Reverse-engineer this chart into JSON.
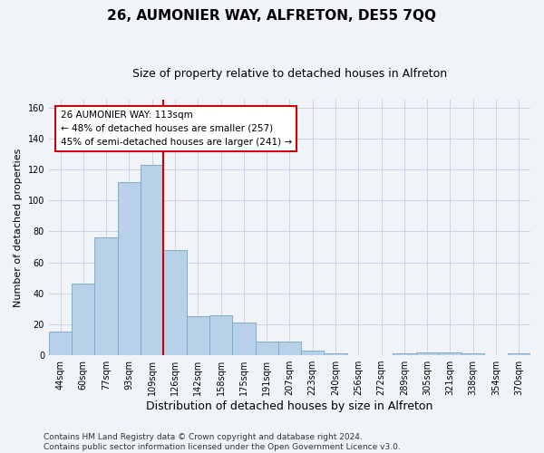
{
  "title": "26, AUMONIER WAY, ALFRETON, DE55 7QQ",
  "subtitle": "Size of property relative to detached houses in Alfreton",
  "xlabel": "Distribution of detached houses by size in Alfreton",
  "ylabel": "Number of detached properties",
  "categories": [
    "44sqm",
    "60sqm",
    "77sqm",
    "93sqm",
    "109sqm",
    "126sqm",
    "142sqm",
    "158sqm",
    "175sqm",
    "191sqm",
    "207sqm",
    "223sqm",
    "240sqm",
    "256sqm",
    "272sqm",
    "289sqm",
    "305sqm",
    "321sqm",
    "338sqm",
    "354sqm",
    "370sqm"
  ],
  "values": [
    15,
    46,
    76,
    112,
    123,
    68,
    25,
    26,
    21,
    9,
    9,
    3,
    1,
    0,
    0,
    1,
    2,
    2,
    1,
    0,
    1
  ],
  "bar_color": "#b8d0e8",
  "bar_edge_color": "#7aaed0",
  "grid_color": "#c8d4e4",
  "background_color": "#f0f4f8",
  "vline_x": 4.5,
  "vline_color": "#cc0000",
  "annotation_text": "26 AUMONIER WAY: 113sqm\n← 48% of detached houses are smaller (257)\n45% of semi-detached houses are larger (241) →",
  "annotation_box_color": "#ffffff",
  "annotation_box_edge": "#cc0000",
  "ylim": [
    0,
    165
  ],
  "yticks": [
    0,
    20,
    40,
    60,
    80,
    100,
    120,
    140,
    160
  ],
  "footnote": "Contains HM Land Registry data © Crown copyright and database right 2024.\nContains public sector information licensed under the Open Government Licence v3.0.",
  "title_fontsize": 11,
  "subtitle_fontsize": 9,
  "xlabel_fontsize": 9,
  "ylabel_fontsize": 8,
  "tick_fontsize": 7,
  "annotation_fontsize": 7.5,
  "footnote_fontsize": 6.5
}
